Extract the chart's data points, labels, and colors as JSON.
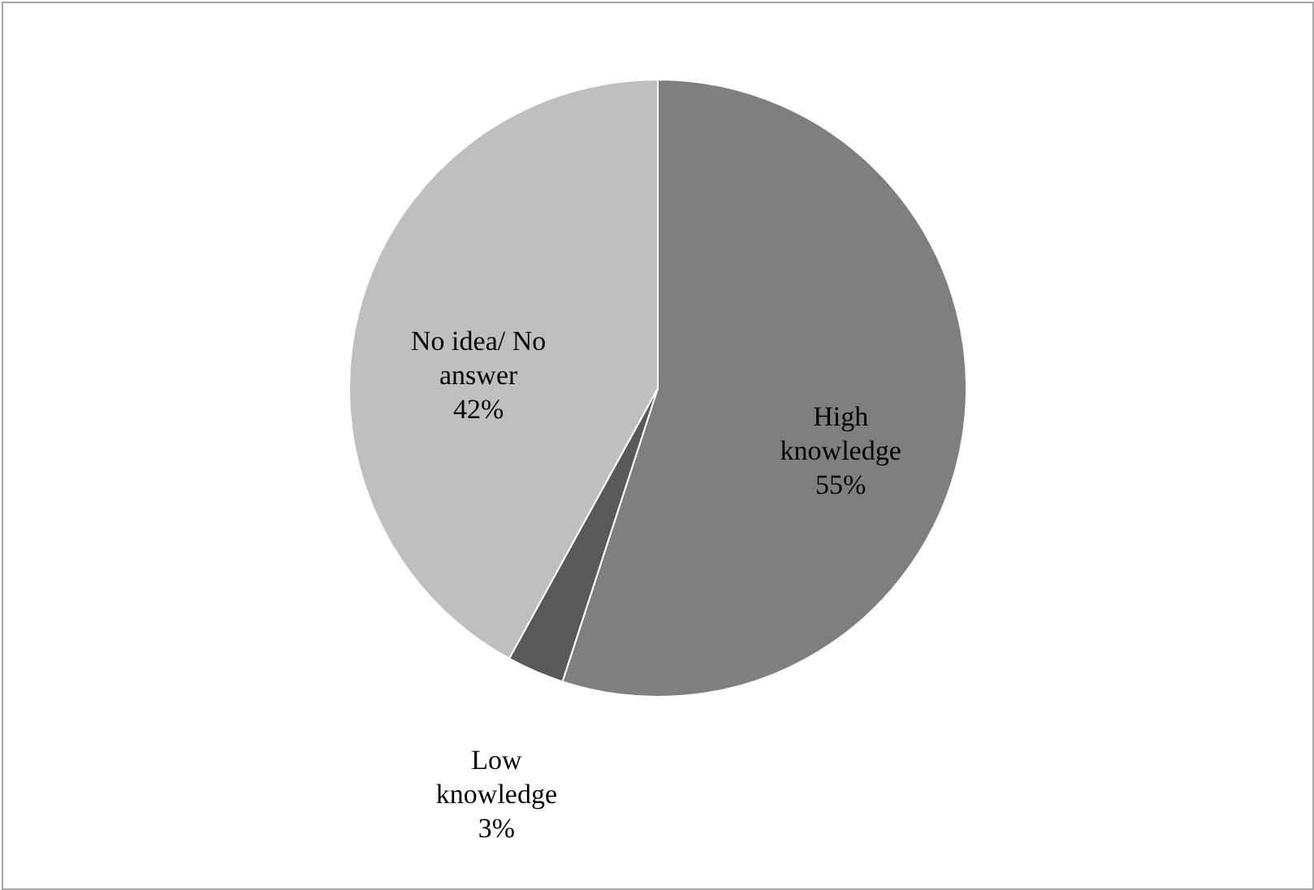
{
  "chart_data": {
    "type": "pie",
    "categories": [
      "High knowledge",
      "Low knowledge",
      "No idea/ No answer"
    ],
    "values": [
      55,
      3,
      42
    ],
    "colors": [
      "#7f7f7f",
      "#595959",
      "#bfbfbf"
    ],
    "value_labels": [
      "55%",
      "3%",
      "42%"
    ]
  }
}
